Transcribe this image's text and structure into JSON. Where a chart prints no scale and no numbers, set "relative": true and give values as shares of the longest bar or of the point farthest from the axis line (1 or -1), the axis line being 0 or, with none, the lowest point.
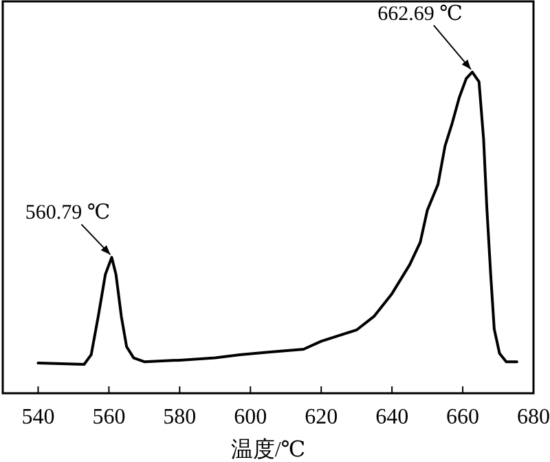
{
  "chart_data": {
    "type": "line",
    "relative": true,
    "xlabel": "温度/℃",
    "xlim": [
      530,
      680
    ],
    "xticks": [
      540,
      560,
      580,
      600,
      620,
      640,
      660,
      680
    ],
    "series": [
      {
        "color": "#000000",
        "x": [
          540,
          553,
          555,
          557,
          559,
          560.79,
          562,
          563.5,
          565,
          567,
          570,
          580,
          590,
          597,
          605,
          615,
          620,
          630,
          635,
          640,
          645,
          648,
          650,
          653,
          655,
          657,
          659,
          661,
          662.69,
          664.6,
          665.9,
          666.8,
          667.9,
          668.9,
          670.4,
          672.3,
          675.3
        ],
        "values": [
          0.094,
          0.09,
          0.12,
          0.24,
          0.37,
          0.423,
          0.37,
          0.24,
          0.145,
          0.11,
          0.098,
          0.103,
          0.11,
          0.12,
          0.128,
          0.137,
          0.162,
          0.197,
          0.24,
          0.31,
          0.4,
          0.47,
          0.57,
          0.65,
          0.77,
          0.84,
          0.92,
          0.98,
          1.0,
          0.97,
          0.79,
          0.58,
          0.37,
          0.2,
          0.124,
          0.098,
          0.098
        ]
      }
    ],
    "annotations": [
      {
        "text": "560.79 ℃",
        "x": 560.79,
        "y": 0.423
      },
      {
        "text": "662.69 ℃",
        "x": 662.69,
        "y": 1.0
      }
    ]
  }
}
